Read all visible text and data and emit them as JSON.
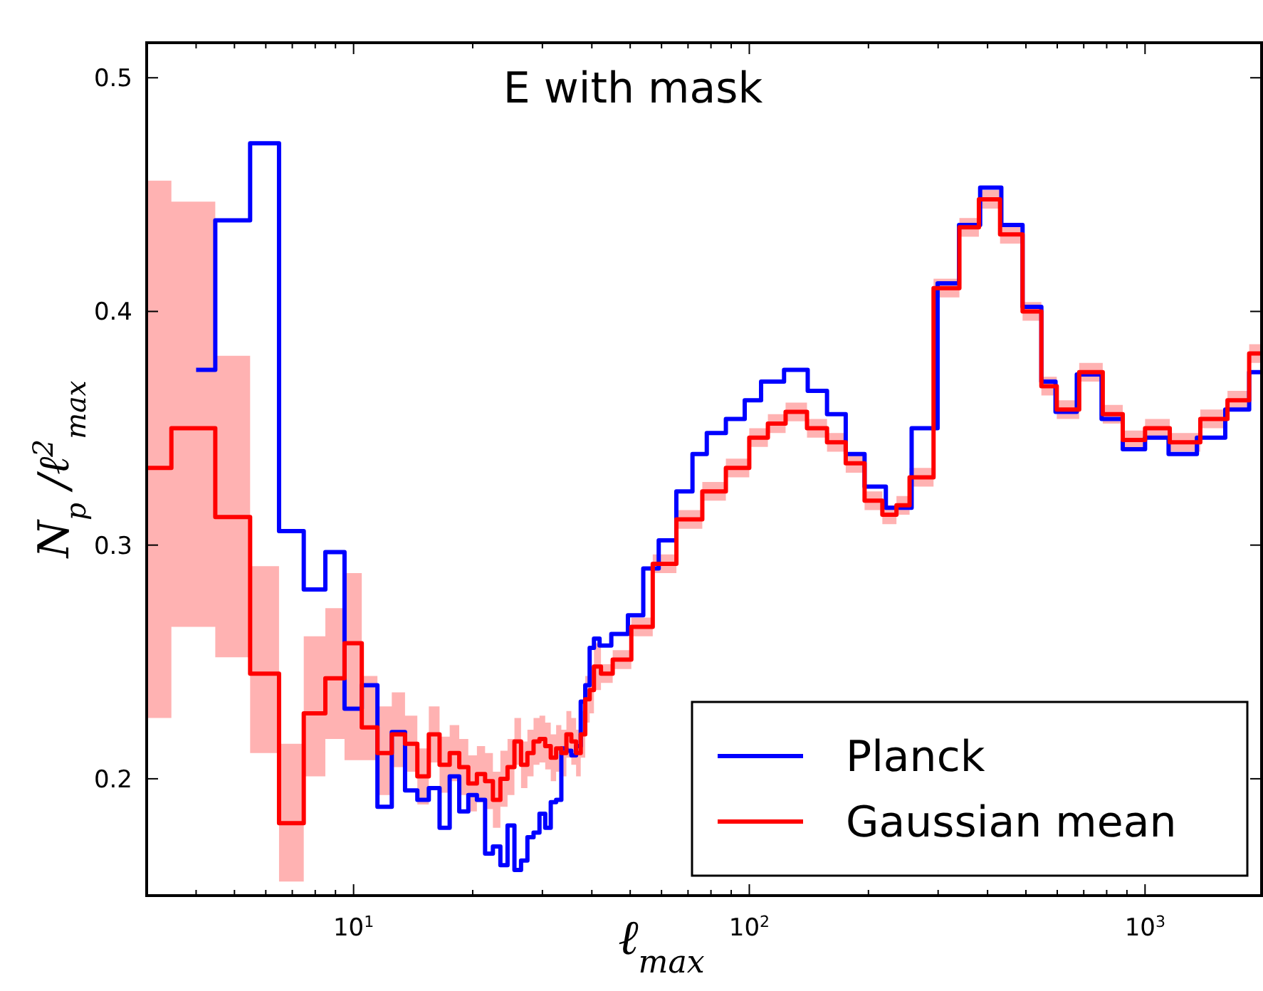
{
  "chart_data": {
    "type": "step",
    "title": "E with mask",
    "xlabel": "ℓ$_{max}$",
    "ylabel": "N$_{p}$ /ℓ$^{2}$$_{max}$",
    "log": "x",
    "xlim": [
      3,
      1970
    ],
    "ylim": [
      0.15,
      0.515
    ],
    "xticks": [
      {
        "value": 4,
        "label": null
      },
      {
        "value": 5,
        "label": null
      },
      {
        "value": 6,
        "label": null
      },
      {
        "value": 7,
        "label": null
      },
      {
        "value": 8,
        "label": null
      },
      {
        "value": 9,
        "label": null
      },
      {
        "value": 10,
        "label": "10$^{1}$"
      },
      {
        "value": 20,
        "label": null
      },
      {
        "value": 30,
        "label": null
      },
      {
        "value": 40,
        "label": null
      },
      {
        "value": 50,
        "label": null
      },
      {
        "value": 60,
        "label": null
      },
      {
        "value": 70,
        "label": null
      },
      {
        "value": 80,
        "label": null
      },
      {
        "value": 90,
        "label": null
      },
      {
        "value": 100,
        "label": "10$^{2}$"
      },
      {
        "value": 200,
        "label": null
      },
      {
        "value": 300,
        "label": null
      },
      {
        "value": 400,
        "label": null
      },
      {
        "value": 500,
        "label": null
      },
      {
        "value": 600,
        "label": null
      },
      {
        "value": 700,
        "label": null
      },
      {
        "value": 800,
        "label": null
      },
      {
        "value": 900,
        "label": null
      },
      {
        "value": 1000,
        "label": "10$^{3}$"
      }
    ],
    "yticks": [
      0.2,
      0.3,
      0.4,
      0.5
    ],
    "grid": false,
    "legend": "bottom right",
    "line_style": "solid",
    "marker": "none",
    "series": [
      {
        "name": "Planck",
        "color": "#0000ff",
        "x": [
          4,
          5,
          6,
          7,
          8,
          9,
          10,
          11,
          12,
          13,
          14,
          15,
          16,
          17,
          18,
          19,
          20,
          21,
          22,
          23,
          24,
          25,
          26,
          27,
          28,
          29,
          30,
          31,
          32,
          33,
          34,
          35,
          36,
          37,
          38,
          39,
          40,
          41,
          42.7,
          47,
          51.8,
          56.2,
          62,
          69,
          74.8,
          81.5,
          93.4,
          101.5,
          113,
          132.6,
          148.8,
          166,
          185,
          206.7,
          237,
          279,
          320.6,
          358,
          410,
          458,
          525,
          570,
          619,
          730,
          826,
          934,
          1071,
          1228,
          1489,
          1708,
          1967
        ],
        "values": [
          0.375,
          0.439,
          0.472,
          0.306,
          0.281,
          0.297,
          0.23,
          0.24,
          0.188,
          0.22,
          0.195,
          0.191,
          0.196,
          0.179,
          0.201,
          0.186,
          0.193,
          0.191,
          0.168,
          0.171,
          0.163,
          0.18,
          0.161,
          0.165,
          0.175,
          0.177,
          0.185,
          0.179,
          0.19,
          0.191,
          0.213,
          0.212,
          0.21,
          0.214,
          0.233,
          0.24,
          0.256,
          0.26,
          0.257,
          0.262,
          0.27,
          0.29,
          0.302,
          0.323,
          0.339,
          0.348,
          0.354,
          0.362,
          0.37,
          0.375,
          0.366,
          0.356,
          0.339,
          0.325,
          0.316,
          0.35,
          0.412,
          0.437,
          0.453,
          0.437,
          0.402,
          0.37,
          0.357,
          0.373,
          0.354,
          0.341,
          0.346,
          0.339,
          0.346,
          0.358,
          0.374
        ]
      },
      {
        "name": "Gaussian mean",
        "color": "#ff0000",
        "x": [
          3,
          4,
          5,
          6,
          7,
          8,
          9,
          10,
          11,
          12,
          13,
          14,
          15,
          16,
          17,
          18,
          19,
          20,
          21,
          22,
          23,
          24,
          25,
          26,
          27,
          28,
          29,
          30,
          31,
          32,
          33,
          34,
          35,
          36,
          37,
          38,
          39,
          40,
          41,
          43.4,
          47,
          53.9,
          60.3,
          71,
          81.5,
          93.4,
          107,
          116,
          131.5,
          148.8,
          166,
          185,
          206.7,
          227.5,
          243.6,
          265,
          322,
          358,
          404,
          458,
          525,
          570,
          628,
          740,
          826,
          934,
          1071,
          1245,
          1528,
          1708,
          1967
        ],
        "values": [
          0.333,
          0.35,
          0.312,
          0.245,
          0.181,
          0.228,
          0.243,
          0.258,
          0.222,
          0.211,
          0.219,
          0.215,
          0.201,
          0.219,
          0.206,
          0.211,
          0.205,
          0.198,
          0.202,
          0.199,
          0.191,
          0.2,
          0.205,
          0.216,
          0.206,
          0.211,
          0.216,
          0.217,
          0.214,
          0.209,
          0.213,
          0.211,
          0.219,
          0.216,
          0.211,
          0.219,
          0.234,
          0.238,
          0.248,
          0.245,
          0.251,
          0.265,
          0.292,
          0.311,
          0.323,
          0.333,
          0.346,
          0.352,
          0.357,
          0.35,
          0.344,
          0.335,
          0.319,
          0.313,
          0.317,
          0.329,
          0.41,
          0.436,
          0.448,
          0.433,
          0.4,
          0.368,
          0.358,
          0.374,
          0.356,
          0.345,
          0.35,
          0.344,
          0.354,
          0.362,
          0.382
        ],
        "lower": [
          0.226,
          0.265,
          0.252,
          0.211,
          0.156,
          0.201,
          0.217,
          0.208,
          0.208,
          0.193,
          0.205,
          0.203,
          0.189,
          0.207,
          0.194,
          0.199,
          0.193,
          0.186,
          0.19,
          0.187,
          0.179,
          0.188,
          0.193,
          0.206,
          0.196,
          0.201,
          0.206,
          0.207,
          0.204,
          0.199,
          0.203,
          0.201,
          0.209,
          0.206,
          0.201,
          0.209,
          0.224,
          0.228,
          0.238,
          0.241,
          0.247,
          0.261,
          0.288,
          0.307,
          0.319,
          0.329,
          0.342,
          0.348,
          0.353,
          0.346,
          0.34,
          0.331,
          0.315,
          0.309,
          0.313,
          0.325,
          0.406,
          0.432,
          0.444,
          0.429,
          0.396,
          0.364,
          0.354,
          0.37,
          0.352,
          0.341,
          0.346,
          0.34,
          0.35,
          0.358,
          0.378
        ],
        "upper": [
          0.456,
          0.447,
          0.381,
          0.291,
          0.215,
          0.261,
          0.273,
          0.288,
          0.244,
          0.231,
          0.237,
          0.227,
          0.213,
          0.231,
          0.218,
          0.223,
          0.217,
          0.21,
          0.214,
          0.211,
          0.203,
          0.212,
          0.217,
          0.226,
          0.216,
          0.221,
          0.226,
          0.227,
          0.224,
          0.219,
          0.223,
          0.221,
          0.229,
          0.226,
          0.221,
          0.229,
          0.244,
          0.248,
          0.258,
          0.249,
          0.255,
          0.269,
          0.296,
          0.315,
          0.327,
          0.337,
          0.35,
          0.356,
          0.361,
          0.354,
          0.348,
          0.339,
          0.323,
          0.317,
          0.321,
          0.333,
          0.414,
          0.44,
          0.452,
          0.437,
          0.404,
          0.372,
          0.362,
          0.378,
          0.36,
          0.349,
          0.354,
          0.348,
          0.358,
          0.366,
          0.386
        ]
      }
    ]
  }
}
